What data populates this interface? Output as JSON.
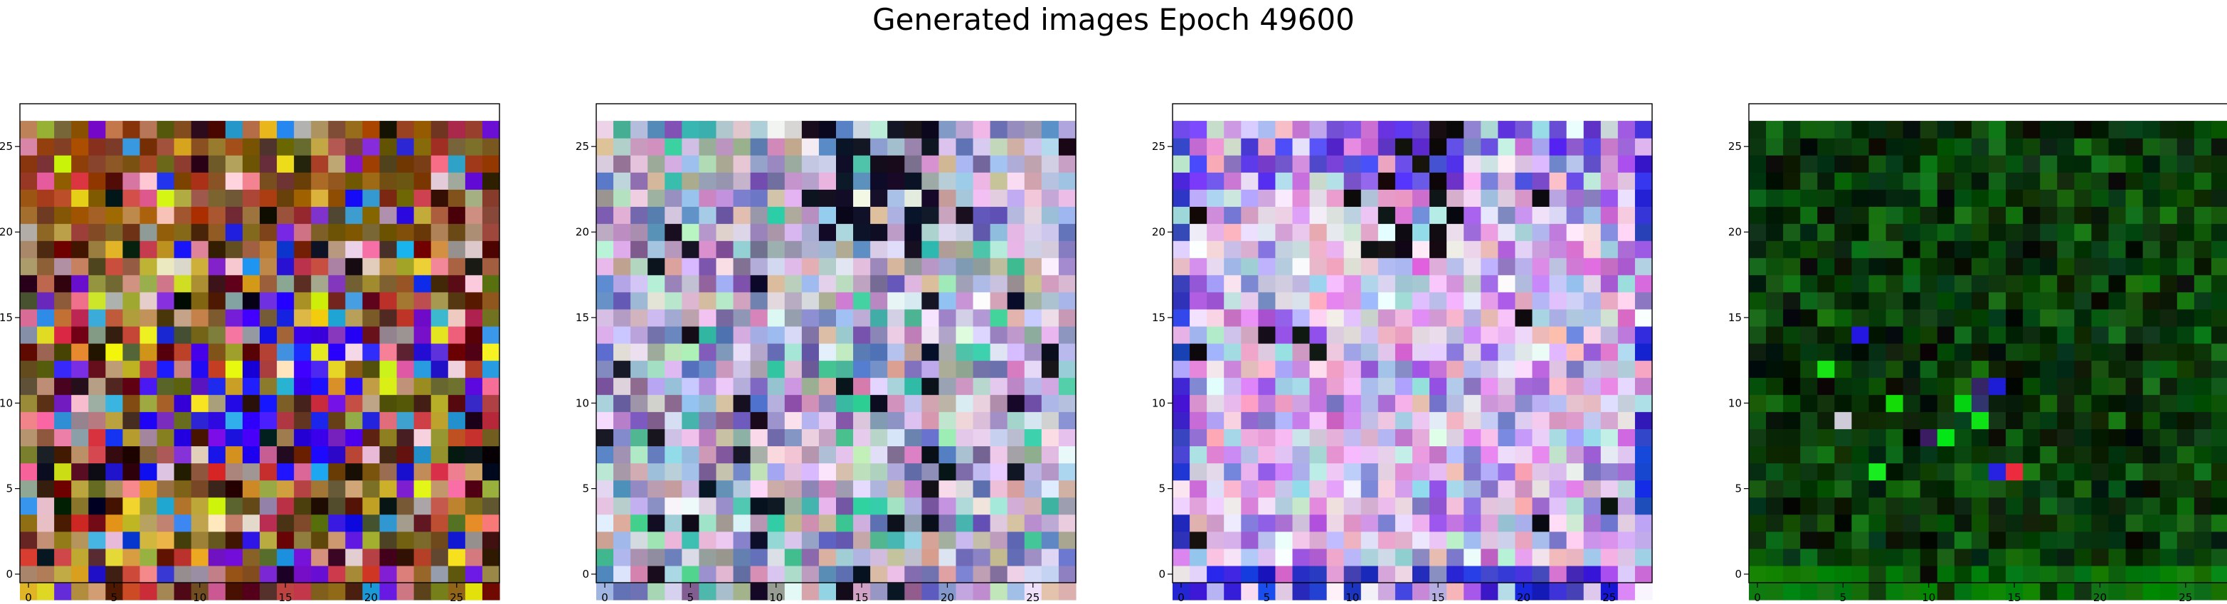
{
  "figure": {
    "title": "Generated images Epoch 49600"
  },
  "chart_data": [
    {
      "type": "heatmap",
      "title": "",
      "grid_size": 28,
      "xlim": [
        -0.5,
        27.5
      ],
      "ylim": [
        27.5,
        -0.5
      ],
      "x_ticks": [
        0,
        5,
        10,
        15,
        20,
        25
      ],
      "y_ticks": [
        0,
        5,
        10,
        15,
        20,
        25
      ],
      "grid": false,
      "palette": [
        "#8a6a2a",
        "#a9a13a",
        "#5a3a1a",
        "#c23a3a",
        "#3a1010",
        "#d4a030",
        "#b07040",
        "#6a5a20",
        "#e07090",
        "#c09070",
        "#2020e0",
        "#7020d0",
        "#101010",
        "#30a0e0",
        "#e0e020",
        "#9a9a9a",
        "#f0d0d0",
        "#5a0a0a"
      ],
      "hotspot_color": "#3010f0"
    },
    {
      "type": "heatmap",
      "title": "",
      "grid_size": 28,
      "xlim": [
        -0.5,
        27.5
      ],
      "ylim": [
        27.5,
        -0.5
      ],
      "x_ticks": [
        0,
        5,
        10,
        15,
        20,
        25
      ],
      "y_ticks": [
        0,
        5,
        10,
        15,
        20,
        25
      ],
      "grid": false,
      "palette": [
        "#b0b8e0",
        "#c0a0d0",
        "#a0c8e0",
        "#d8c8f0",
        "#9090c0",
        "#b0e0c8",
        "#e0d0e8",
        "#7060b0",
        "#c890c0",
        "#a0a0a0",
        "#e8e8f0",
        "#6080c0",
        "#d0b0a0",
        "#40c0a0",
        "#8060a0",
        "#e0c0e0"
      ],
      "dark_color": "#101020"
    },
    {
      "type": "heatmap",
      "title": "",
      "grid_size": 28,
      "xlim": [
        -0.5,
        27.5
      ],
      "ylim": [
        27.5,
        -0.5
      ],
      "x_ticks": [
        0,
        5,
        10,
        15,
        20,
        25
      ],
      "y_ticks": [
        0,
        5,
        10,
        15,
        20,
        25
      ],
      "grid": false,
      "palette": [
        "#e8c0f0",
        "#d070d0",
        "#f0e0f0",
        "#c0c0e8",
        "#a060e0",
        "#e0a0d0",
        "#8080d0",
        "#f0f0f8",
        "#c0e0d8",
        "#e8d0e8",
        "#d890e8",
        "#b0b0f0",
        "#f0b0c0",
        "#a0d0e0"
      ],
      "edge_color": "#3030d0",
      "accent_color": "#101010"
    },
    {
      "type": "heatmap",
      "title": "",
      "grid_size": 28,
      "xlim": [
        -0.5,
        27.5
      ],
      "ylim": [
        27.5,
        -0.5
      ],
      "x_ticks": [
        0,
        5,
        10,
        15,
        20,
        25
      ],
      "y_ticks": [
        0,
        5,
        10,
        15,
        20,
        25
      ],
      "grid": false,
      "palette": [
        "#0a4a0a",
        "#083808",
        "#0a2a0a",
        "#105a10",
        "#062006",
        "#0c3c14",
        "#041004",
        "#147014",
        "#082a0a"
      ],
      "top_color": "#0a7a0a",
      "accent_colors": [
        "#10e010",
        "#2020e0",
        "#e02040",
        "#c0c0e0",
        "#101010",
        "#3a2a6a"
      ]
    }
  ]
}
